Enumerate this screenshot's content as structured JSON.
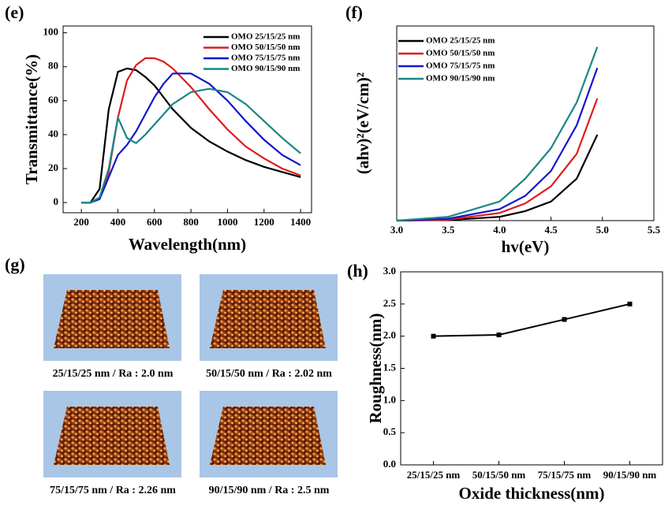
{
  "chart_data": [
    {
      "type": "line",
      "label": "(e)",
      "xlabel": "Wavelength(nm)",
      "ylabel": "Transmittance(%)",
      "xlim": [
        100,
        1460
      ],
      "ylim": [
        -6,
        104
      ],
      "xticks": [
        200,
        400,
        600,
        800,
        1000,
        1200,
        1400
      ],
      "yticks": [
        0,
        20,
        40,
        60,
        80,
        100
      ],
      "legend": "upper right",
      "x": [
        200,
        250,
        300,
        350,
        400,
        450,
        500,
        550,
        600,
        650,
        700,
        800,
        900,
        1000,
        1100,
        1200,
        1300,
        1400
      ],
      "series": [
        {
          "name": "OMO 25/15/25 nm",
          "color": "#000000",
          "values": [
            0,
            0,
            8,
            55,
            77,
            79,
            78,
            74,
            69,
            62,
            55,
            44,
            36,
            30,
            25,
            21,
            18,
            15
          ]
        },
        {
          "name": "OMO 50/15/50 nm",
          "color": "#e01b1b",
          "values": [
            0,
            0,
            3,
            18,
            50,
            72,
            81,
            85,
            85,
            83,
            79,
            68,
            55,
            43,
            33,
            26,
            20,
            16
          ]
        },
        {
          "name": "OMO 75/15/75 nm",
          "color": "#1515cc",
          "values": [
            0,
            0,
            2,
            15,
            28,
            34,
            42,
            52,
            62,
            70,
            76,
            76,
            70,
            60,
            48,
            37,
            28,
            22
          ]
        },
        {
          "name": "OMO 90/15/90 nm",
          "color": "#1a8585",
          "values": [
            0,
            0,
            3,
            20,
            50,
            38,
            35,
            40,
            46,
            52,
            58,
            65,
            67,
            65,
            58,
            48,
            38,
            29
          ]
        }
      ]
    },
    {
      "type": "line",
      "label": "(f)",
      "xlabel": "hv(eV)",
      "ylabel": "(ahν)²(eV/cm)²",
      "xlim": [
        3,
        5.5
      ],
      "ylim": [
        0,
        102
      ],
      "xticks": [
        {
          "value": 3,
          "label": "3.0"
        },
        {
          "value": 3.5,
          "label": "3.5"
        },
        {
          "value": 4,
          "label": "4.0"
        },
        {
          "value": 4.5,
          "label": "4.5"
        },
        {
          "value": 5,
          "label": "5.0"
        },
        {
          "value": 5.5,
          "label": "5.5"
        }
      ],
      "legend": "upper left",
      "x": [
        3.0,
        3.5,
        4.0,
        4.25,
        4.5,
        4.75,
        4.95
      ],
      "series": [
        {
          "name": "OMO 25/15/25 nm",
          "color": "#000000",
          "values": [
            0,
            0.3,
            2,
            5,
            10,
            22,
            45
          ]
        },
        {
          "name": "OMO 50/15/50 nm",
          "color": "#e01b1b",
          "values": [
            0,
            0.5,
            4,
            9,
            18,
            35,
            64
          ]
        },
        {
          "name": "OMO 75/15/75 nm",
          "color": "#1515cc",
          "values": [
            0,
            1,
            6,
            13,
            26,
            50,
            80
          ]
        },
        {
          "name": "OMO 90/15/90 nm",
          "color": "#1a8585",
          "values": [
            0,
            2,
            10,
            22,
            38,
            62,
            91
          ]
        }
      ]
    },
    {
      "type": "category-line",
      "label": "(h)",
      "xlabel": "Oxide thickness(nm)",
      "ylabel": "Roughness(nm)",
      "ylim": [
        0,
        3
      ],
      "yticks": [
        {
          "value": 0,
          "label": "0.0"
        },
        {
          "value": 0.5,
          "label": "0.5"
        },
        {
          "value": 1,
          "label": "1.0"
        },
        {
          "value": 1.5,
          "label": "1.5"
        },
        {
          "value": 2,
          "label": "2.0"
        },
        {
          "value": 2.5,
          "label": "2.5"
        },
        {
          "value": 3,
          "label": "3.0"
        }
      ],
      "categories": [
        "25/15/25 nm",
        "50/15/50 nm",
        "75/15/75 nm",
        "90/15/90 nm"
      ],
      "color": "#000000",
      "values": [
        2.0,
        2.02,
        2.26,
        2.5
      ]
    }
  ],
  "afm": {
    "label": "(g)",
    "captions": [
      "25/15/25 nm / Ra : 2.0 nm",
      "50/15/50 nm / Ra : 2.02 nm",
      "75/15/75 nm / Ra : 2.26 nm",
      "90/15/90 nm / Ra : 2.5 nm"
    ]
  }
}
